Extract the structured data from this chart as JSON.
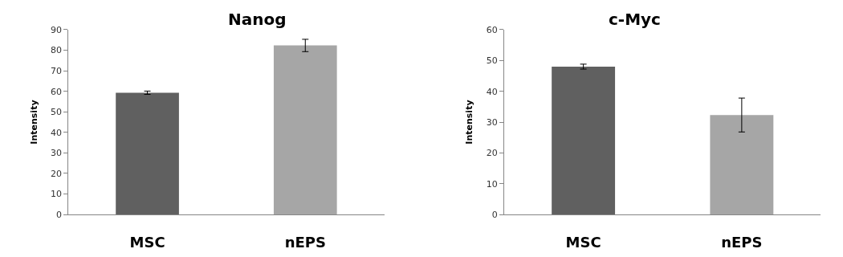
{
  "chart_data": [
    {
      "type": "bar",
      "title": "Nanog",
      "ylabel": "Intensity",
      "categories": [
        "MSC",
        "nEPS"
      ],
      "values": [
        59.3,
        82.3
      ],
      "errors": [
        0.8,
        3
      ],
      "colors": [
        "#606060",
        "#a6a6a6"
      ],
      "ylim": [
        0,
        90
      ],
      "yticks": [
        0,
        10,
        20,
        30,
        40,
        50,
        60,
        70,
        80,
        90
      ]
    },
    {
      "type": "bar",
      "title": "c-Myc",
      "ylabel": "Intensity",
      "categories": [
        "MSC",
        "nEPS"
      ],
      "values": [
        48,
        32.3
      ],
      "errors": [
        0.8,
        5.5
      ],
      "colors": [
        "#606060",
        "#a6a6a6"
      ],
      "ylim": [
        0,
        60
      ],
      "yticks": [
        0,
        10,
        20,
        30,
        40,
        50,
        60
      ]
    }
  ]
}
